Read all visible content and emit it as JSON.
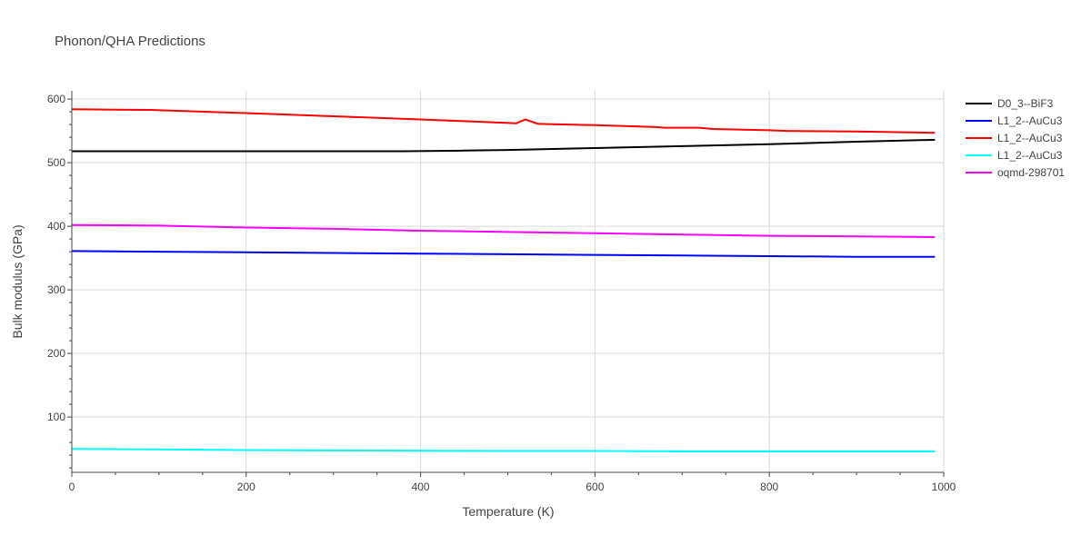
{
  "chart_data": {
    "type": "line",
    "title": "Phonon/QHA Predictions",
    "xlabel": "Temperature (K)",
    "ylabel": "Bulk modulus (GPa)",
    "xlim": [
      0,
      1000
    ],
    "ylim": [
      13,
      613
    ],
    "xticks": [
      0,
      200,
      400,
      600,
      800,
      1000
    ],
    "yticks": [
      100,
      200,
      300,
      400,
      500,
      600
    ],
    "grid": true,
    "legend_position": "top-right",
    "series": [
      {
        "name": "D0_3--BiF3",
        "color": "#000000",
        "x": [
          0,
          100,
          200,
          300,
          380,
          450,
          500,
          600,
          700,
          800,
          900,
          990
        ],
        "y": [
          518,
          518,
          518,
          518,
          518,
          519,
          520,
          523,
          526,
          529,
          533,
          536
        ]
      },
      {
        "name": "L1_2--AuCu3",
        "color": "#0000ff",
        "x": [
          0,
          100,
          200,
          300,
          400,
          500,
          600,
          700,
          800,
          900,
          990
        ],
        "y": [
          361,
          360,
          359,
          358,
          357,
          356,
          355,
          354,
          353,
          352,
          352
        ]
      },
      {
        "name": "L1_2--AuCu3",
        "color": "#ff0000",
        "x": [
          0,
          90,
          200,
          300,
          400,
          510,
          520,
          535,
          600,
          670,
          680,
          720,
          735,
          800,
          820,
          900,
          990
        ],
        "y": [
          584,
          583,
          578,
          573,
          568,
          562,
          568,
          561,
          559,
          556,
          555,
          555,
          553,
          551,
          550,
          549,
          547
        ]
      },
      {
        "name": "L1_2--AuCu3",
        "color": "#00ffff",
        "x": [
          0,
          100,
          200,
          300,
          400,
          500,
          600,
          700,
          800,
          900,
          990
        ],
        "y": [
          50,
          49,
          48,
          47.5,
          47,
          46.5,
          46.5,
          46,
          46,
          46,
          46
        ]
      },
      {
        "name": "oqmd-298701",
        "color": "#ff00ff",
        "x": [
          0,
          100,
          200,
          300,
          400,
          500,
          600,
          700,
          800,
          900,
          990
        ],
        "y": [
          402,
          401,
          398,
          396,
          393,
          391,
          389,
          387,
          385,
          384,
          383
        ]
      }
    ]
  }
}
